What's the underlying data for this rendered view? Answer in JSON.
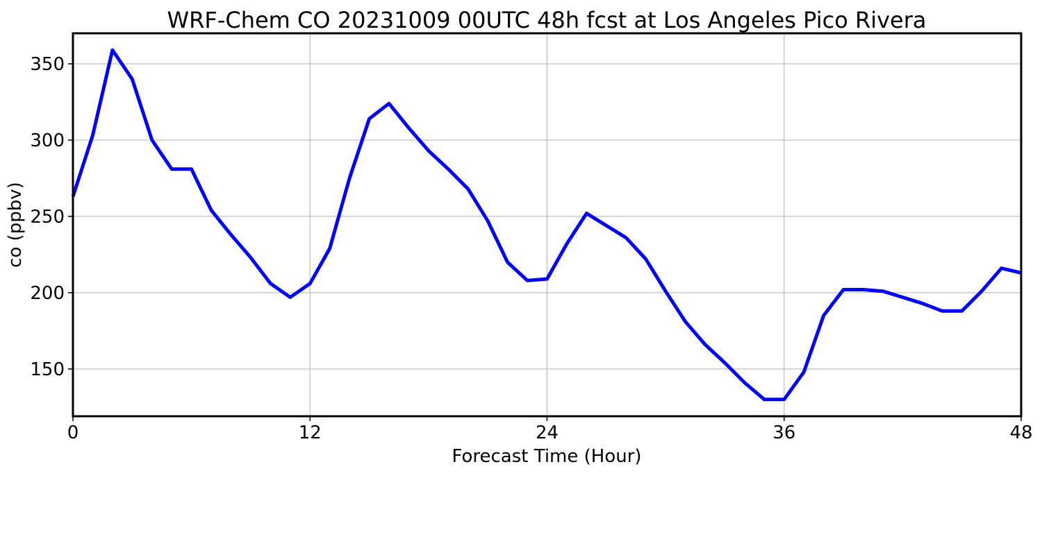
{
  "chart_data": {
    "type": "line",
    "title": "WRF-Chem CO  20231009 00UTC 48h fcst at Los Angeles Pico Rivera",
    "xlabel": "Forecast Time (Hour)",
    "ylabel": "co  (ppbv)",
    "xlim": [
      0,
      48
    ],
    "ylim": [
      119,
      370
    ],
    "xticks": [
      0,
      12,
      24,
      36,
      48
    ],
    "yticks": [
      150,
      200,
      250,
      300,
      350
    ],
    "grid": true,
    "line_color": "#0000ff",
    "series": [
      {
        "x": [
          0,
          1,
          2,
          3,
          4,
          5,
          6,
          7,
          8,
          9,
          10,
          11,
          12,
          13,
          14,
          15,
          16,
          17,
          18,
          19,
          20,
          21,
          22,
          23,
          24,
          25,
          26,
          27,
          28,
          29,
          30,
          31,
          32,
          33,
          34,
          35,
          36,
          37,
          38,
          39,
          40,
          41,
          42,
          43,
          44,
          45,
          46,
          47,
          48
        ],
        "values": [
          263,
          303,
          359,
          340,
          300,
          281,
          281,
          254,
          238,
          223,
          206,
          197,
          206,
          229,
          275,
          314,
          324,
          308,
          293,
          281,
          268,
          247,
          220,
          208,
          209,
          232,
          252,
          244,
          236,
          222,
          201,
          181,
          166,
          154,
          141,
          130,
          130,
          148,
          185,
          202,
          202,
          201,
          197,
          193,
          188,
          188,
          201,
          216,
          213
        ]
      }
    ]
  }
}
